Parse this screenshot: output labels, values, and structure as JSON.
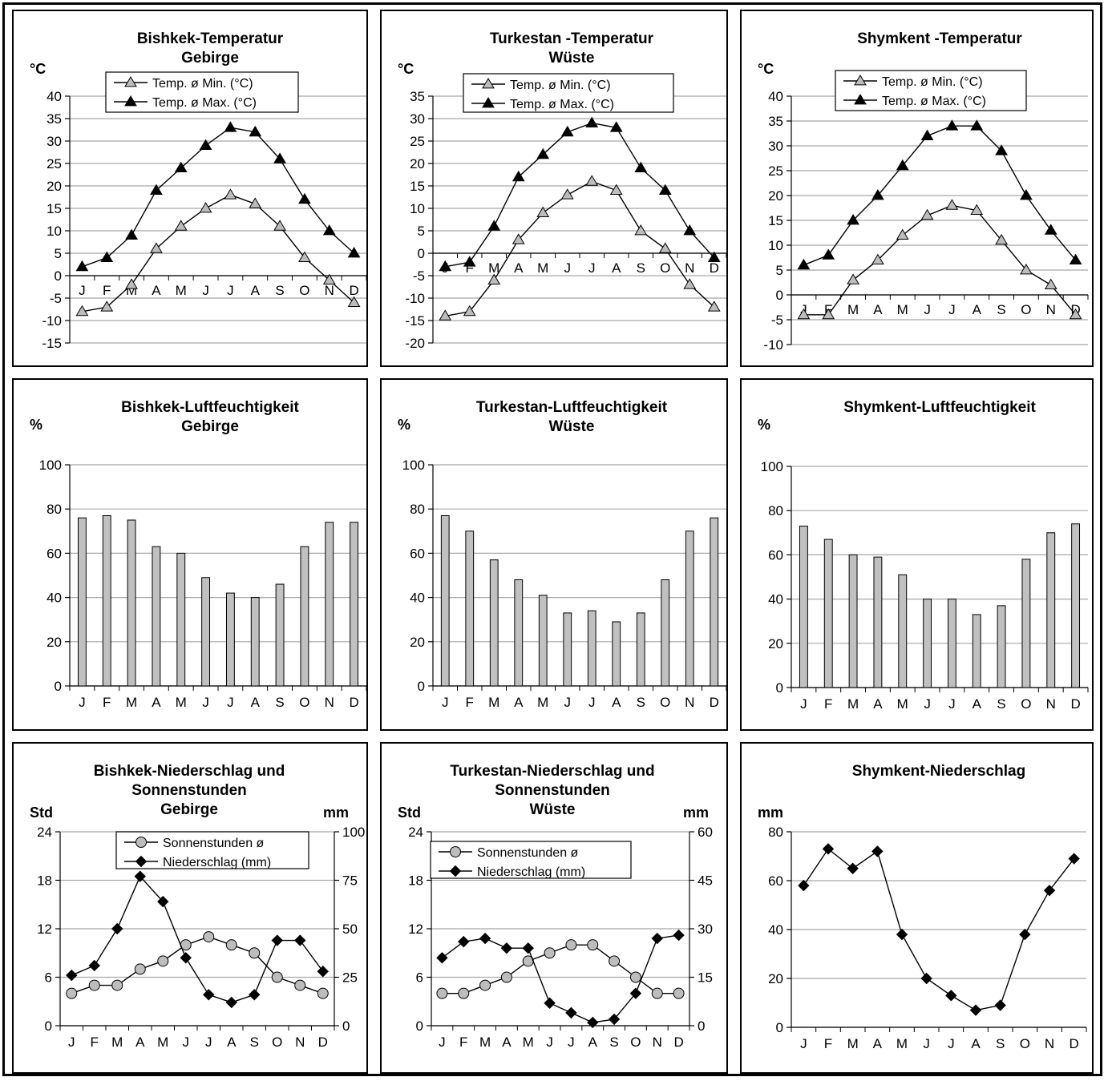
{
  "colors": {
    "grid": "#a8a8a8",
    "bar_fill": "#c0c0c0",
    "marker_gray": "#bdbdbd",
    "line": "#000000"
  },
  "chart_data": [
    {
      "id": "bishkek-temp",
      "type": "line",
      "title_lines": [
        "Bishkek-Temperatur",
        "Gebirge"
      ],
      "left_unit": "°C",
      "categories": [
        "J",
        "F",
        "M",
        "A",
        "M",
        "J",
        "J",
        "A",
        "S",
        "O",
        "N",
        "D"
      ],
      "y": {
        "min": -15,
        "max": 40,
        "step": 5
      },
      "legend": {
        "position": "top-center",
        "entries": [
          "Temp. ø Min. (°C)",
          "Temp. ø Max. (°C)"
        ]
      },
      "series": [
        {
          "name": "Temp. ø Min. (°C)",
          "marker": "triangle-open",
          "values": [
            -8,
            -7,
            -2,
            6,
            11,
            15,
            18,
            16,
            11,
            4,
            -1,
            -6
          ]
        },
        {
          "name": "Temp. ø Max. (°C)",
          "marker": "triangle-filled",
          "values": [
            2,
            4,
            9,
            19,
            24,
            29,
            33,
            32,
            26,
            17,
            10,
            5
          ]
        }
      ]
    },
    {
      "id": "turkestan-temp",
      "type": "line",
      "title_lines": [
        "Turkestan -Temperatur",
        "Wüste"
      ],
      "left_unit": "°C",
      "categories": [
        "J",
        "F",
        "M",
        "A",
        "M",
        "J",
        "J",
        "A",
        "S",
        "O",
        "N",
        "D"
      ],
      "y": {
        "min": -20,
        "max": 35,
        "step": 5
      },
      "legend": {
        "position": "top-center",
        "entries": [
          "Temp. ø Min. (°C)",
          "Temp. ø Max. (°C)"
        ]
      },
      "series": [
        {
          "name": "Temp. ø Min. (°C)",
          "marker": "triangle-open",
          "values": [
            -14,
            -13,
            -6,
            3,
            9,
            13,
            16,
            14,
            5,
            1,
            -7,
            -12
          ]
        },
        {
          "name": "Temp. ø Max. (°C)",
          "marker": "triangle-filled",
          "values": [
            -3,
            -2,
            6,
            17,
            22,
            27,
            29,
            28,
            19,
            14,
            5,
            -1
          ]
        }
      ]
    },
    {
      "id": "shymkent-temp",
      "type": "line",
      "title_lines": [
        "Shymkent -Temperatur"
      ],
      "left_unit": "°C",
      "categories": [
        "J",
        "F",
        "M",
        "A",
        "M",
        "J",
        "J",
        "A",
        "S",
        "O",
        "N",
        "D"
      ],
      "y": {
        "min": -10,
        "max": 40,
        "step": 5
      },
      "legend": {
        "position": "top-center",
        "entries": [
          "Temp. ø Min. (°C)",
          "Temp. ø Max. (°C)"
        ]
      },
      "series": [
        {
          "name": "Temp. ø Min. (°C)",
          "marker": "triangle-open",
          "values": [
            -4,
            -4,
            3,
            7,
            12,
            16,
            18,
            17,
            11,
            5,
            2,
            -4
          ]
        },
        {
          "name": "Temp. ø Max. (°C)",
          "marker": "triangle-filled",
          "values": [
            6,
            8,
            15,
            20,
            26,
            32,
            34,
            34,
            29,
            20,
            13,
            7
          ]
        }
      ]
    },
    {
      "id": "bishkek-humidity",
      "type": "bar",
      "title_lines": [
        "Bishkek-Luftfeuchtigkeit",
        "Gebirge"
      ],
      "left_unit": "%",
      "categories": [
        "J",
        "F",
        "M",
        "A",
        "M",
        "J",
        "J",
        "A",
        "S",
        "O",
        "N",
        "D"
      ],
      "y": {
        "min": 0,
        "max": 100,
        "step": 20
      },
      "values": [
        76,
        77,
        75,
        63,
        60,
        49,
        42,
        40,
        46,
        63,
        74,
        74
      ]
    },
    {
      "id": "turkestan-humidity",
      "type": "bar",
      "title_lines": [
        "Turkestan-Luftfeuchtigkeit",
        "Wüste"
      ],
      "left_unit": "%",
      "categories": [
        "J",
        "F",
        "M",
        "A",
        "M",
        "J",
        "J",
        "A",
        "S",
        "O",
        "N",
        "D"
      ],
      "y": {
        "min": 0,
        "max": 100,
        "step": 20
      },
      "values": [
        77,
        70,
        57,
        48,
        41,
        33,
        34,
        29,
        33,
        48,
        70,
        76
      ]
    },
    {
      "id": "shymkent-humidity",
      "type": "bar",
      "title_lines": [
        "Shymkent-Luftfeuchtigkeit"
      ],
      "left_unit": "%",
      "categories": [
        "J",
        "F",
        "M",
        "A",
        "M",
        "J",
        "J",
        "A",
        "S",
        "O",
        "N",
        "D"
      ],
      "y": {
        "min": 0,
        "max": 100,
        "step": 20
      },
      "values": [
        73,
        67,
        60,
        59,
        51,
        40,
        40,
        33,
        37,
        58,
        70,
        74
      ]
    },
    {
      "id": "bishkek-precip",
      "type": "line",
      "title_lines": [
        "Bishkek-Niederschlag und",
        "Sonnenstunden",
        "Gebirge"
      ],
      "left_unit": "Std",
      "right_unit": "mm",
      "categories": [
        "J",
        "F",
        "M",
        "A",
        "M",
        "J",
        "J",
        "A",
        "S",
        "O",
        "N",
        "D"
      ],
      "y": {
        "min": 0,
        "max": 24,
        "step": 6
      },
      "y2": {
        "min": 0,
        "max": 100,
        "step": 25
      },
      "legend": {
        "position": "top-right",
        "entries": [
          "Sonnenstunden ø",
          "Niederschlag (mm)"
        ]
      },
      "series": [
        {
          "name": "Sonnenstunden ø",
          "marker": "circle",
          "axis": "left",
          "values": [
            4,
            5,
            5,
            7,
            8,
            10,
            11,
            10,
            9,
            6,
            5,
            4
          ]
        },
        {
          "name": "Niederschlag (mm)",
          "marker": "diamond",
          "axis": "right",
          "values": [
            26,
            31,
            50,
            77,
            64,
            35,
            16,
            12,
            16,
            44,
            44,
            28
          ]
        }
      ]
    },
    {
      "id": "turkestan-precip",
      "type": "line",
      "title_lines": [
        "Turkestan-Niederschlag und",
        "Sonnenstunden",
        "Wüste"
      ],
      "left_unit": "Std",
      "right_unit": "mm",
      "categories": [
        "J",
        "F",
        "M",
        "A",
        "M",
        "J",
        "J",
        "A",
        "S",
        "O",
        "N",
        "D"
      ],
      "y": {
        "min": 0,
        "max": 24,
        "step": 6
      },
      "y2": {
        "min": 0,
        "max": 60,
        "step": 15
      },
      "legend": {
        "position": "top-left",
        "entries": [
          "Sonnenstunden ø",
          "Niederschlag (mm)"
        ]
      },
      "series": [
        {
          "name": "Sonnenstunden ø",
          "marker": "circle",
          "axis": "left",
          "values": [
            4,
            4,
            5,
            6,
            8,
            9,
            10,
            10,
            8,
            6,
            4,
            4
          ]
        },
        {
          "name": "Niederschlag (mm)",
          "marker": "diamond",
          "axis": "right",
          "values": [
            21,
            26,
            27,
            24,
            24,
            7,
            4,
            1,
            2,
            10,
            27,
            28
          ]
        }
      ]
    },
    {
      "id": "shymkent-precip",
      "type": "line",
      "title_lines": [
        "Shymkent-Niederschlag"
      ],
      "left_unit": "mm",
      "categories": [
        "J",
        "F",
        "M",
        "A",
        "M",
        "J",
        "J",
        "A",
        "S",
        "O",
        "N",
        "D"
      ],
      "y": {
        "min": 0,
        "max": 80,
        "step": 20
      },
      "series": [
        {
          "name": "Niederschlag",
          "marker": "diamond",
          "values": [
            58,
            73,
            65,
            72,
            38,
            20,
            13,
            7,
            9,
            38,
            56,
            69
          ]
        }
      ]
    }
  ]
}
